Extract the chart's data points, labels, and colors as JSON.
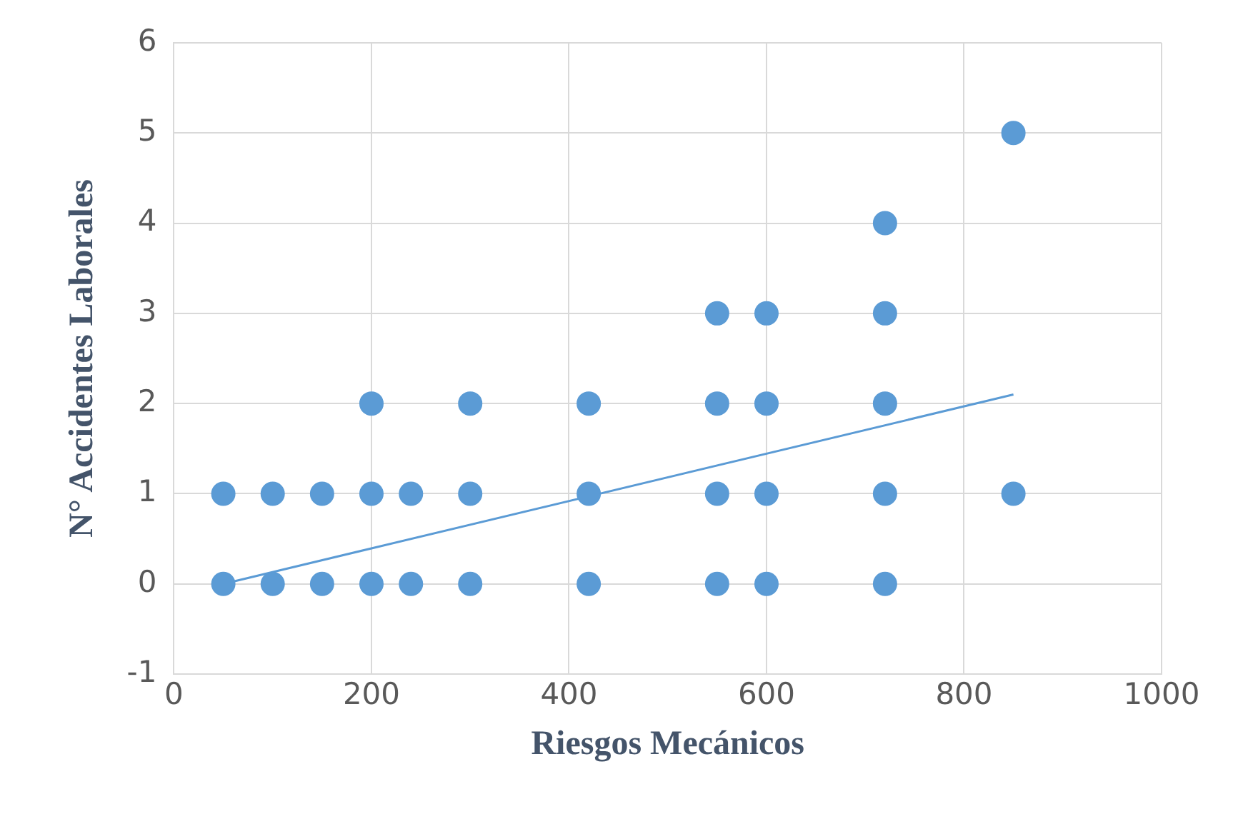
{
  "chart_data": {
    "type": "scatter",
    "xlabel": "Riesgos Mecánicos",
    "ylabel": "N° Accidentes Laborales",
    "xlim": [
      0,
      1000
    ],
    "xticks": [
      0,
      200,
      400,
      600,
      800,
      1000
    ],
    "ylim": [
      -1,
      6
    ],
    "yticks": [
      -1,
      0,
      1,
      2,
      3,
      4,
      5,
      6
    ],
    "grid": true,
    "series": [
      {
        "marker": "circle",
        "color": "#5b9bd5",
        "x": [
          50,
          50,
          100,
          100,
          150,
          150,
          200,
          200,
          200,
          240,
          240,
          300,
          300,
          300,
          420,
          420,
          420,
          550,
          550,
          550,
          550,
          600,
          600,
          600,
          600,
          720,
          720,
          720,
          720,
          720,
          850,
          850
        ],
        "values": [
          0,
          1,
          0,
          1,
          0,
          1,
          0,
          1,
          2,
          0,
          1,
          0,
          1,
          2,
          0,
          1,
          2,
          0,
          1,
          2,
          3,
          0,
          1,
          2,
          3,
          0,
          1,
          2,
          3,
          4,
          1,
          5
        ]
      },
      {
        "type": "line",
        "marker": "none",
        "color": "#5b9bd5",
        "x": [
          50,
          850
        ],
        "values": [
          0,
          2.1
        ]
      }
    ]
  }
}
